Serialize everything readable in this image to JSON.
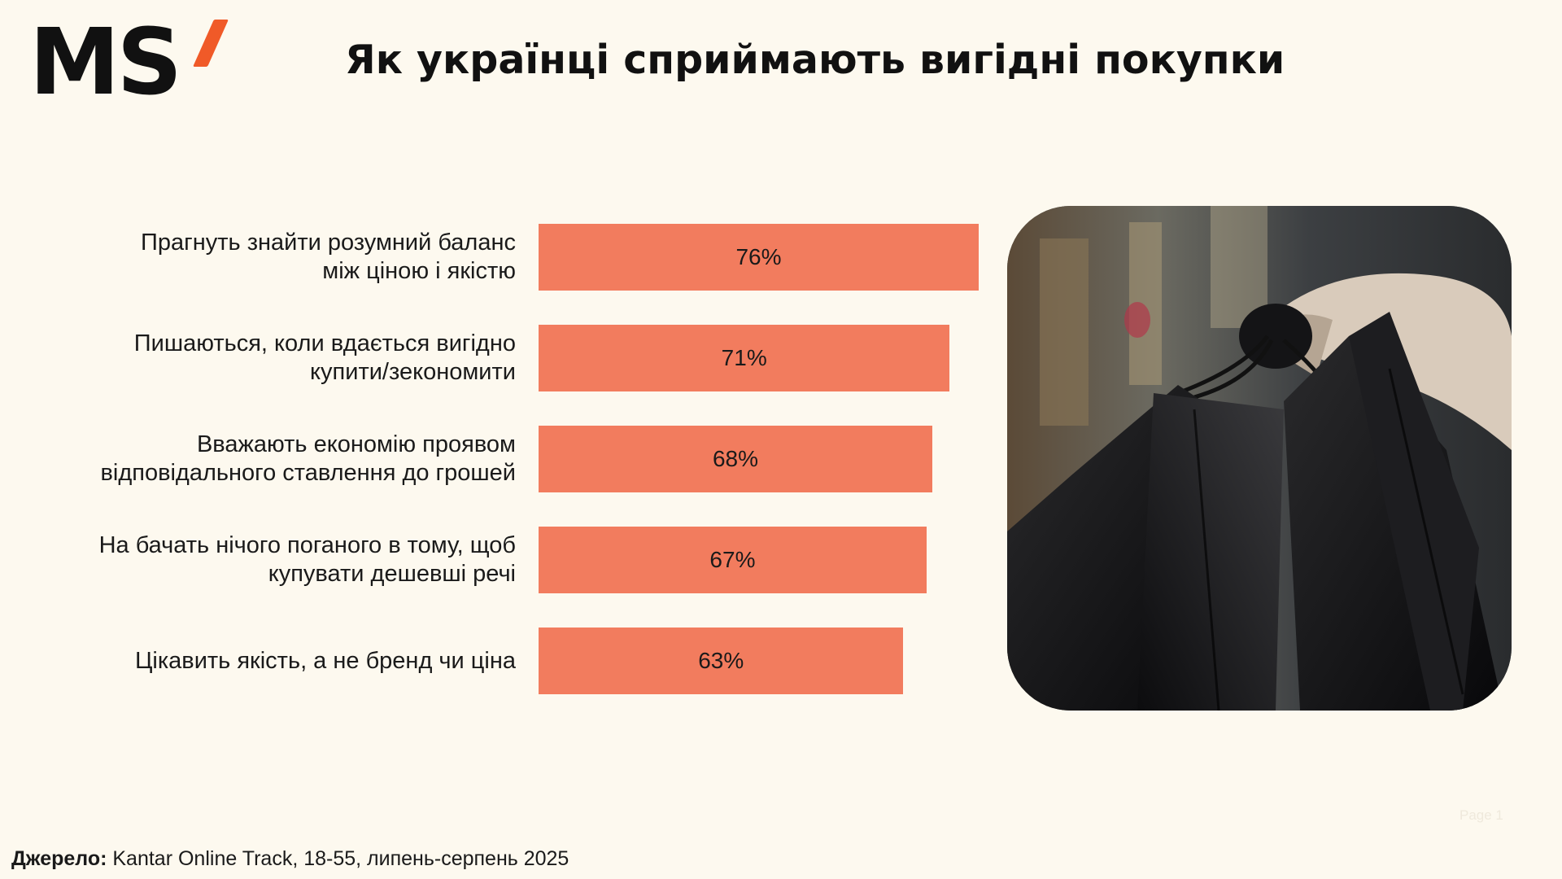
{
  "logo": {
    "text": "MS",
    "accent_color": "#f05a28"
  },
  "page_title": "Як українці сприймають вигідні покупки",
  "chart_data": {
    "type": "bar",
    "orientation": "horizontal",
    "title": "",
    "xlabel": "",
    "ylabel": "",
    "xlim": [
      0,
      76
    ],
    "bar_color": "#f27c5e",
    "categories": [
      [
        "Прагнуть знайти розумний баланс",
        "між ціною і якістю"
      ],
      [
        "Пишаються, коли вдається вигідно",
        "купити/зекономити"
      ],
      [
        "Вважають економію проявом",
        "відповідального ставлення до грошей"
      ],
      [
        "На бачать нічого поганого в тому, щоб",
        "купувати дешевші речі"
      ],
      [
        "Цікавить якість, а не бренд чи ціна"
      ]
    ],
    "values": [
      76,
      71,
      68,
      67,
      63
    ],
    "value_labels": [
      "76%",
      "71%",
      "68%",
      "67%",
      "63%"
    ]
  },
  "photo": {
    "icon": "shopping-bags-photo"
  },
  "page_mark": "Page 1",
  "source": {
    "label": "Джерело:",
    "text": " Kantar Online Track, 18-55, липень-серпень 2025"
  }
}
